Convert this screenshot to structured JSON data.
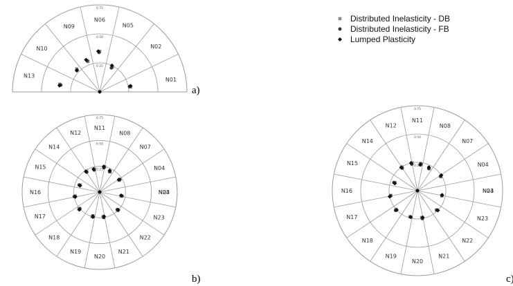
{
  "chart_data": [
    {
      "type": "scatter",
      "panel_label": "a)",
      "sectors": [
        "N01",
        "N02",
        "N05",
        "N06",
        "N09",
        "N10",
        "N13"
      ],
      "rings": [
        0.25,
        0.5,
        0.75
      ],
      "rlim": [
        0,
        0.75
      ],
      "series": [
        {
          "name": "Distributed Inelasticity  - DB",
          "marker": "square",
          "color": "#8a8a8a",
          "points": [
            {
              "angle": 9,
              "r": 0.27
            },
            {
              "angle": 63,
              "r": 0.24
            },
            {
              "angle": 90,
              "r": 0.35
            },
            {
              "angle": 111,
              "r": 0.28
            },
            {
              "angle": 135,
              "r": 0.28
            },
            {
              "angle": 169,
              "r": 0.35
            }
          ]
        },
        {
          "name": "Distributed Inelasticity - FB",
          "marker": "circle",
          "color": "#3a3a3a",
          "points": [
            {
              "angle": 10,
              "r": 0.26
            },
            {
              "angle": 64,
              "r": 0.23
            },
            {
              "angle": 91,
              "r": 0.34
            },
            {
              "angle": 112,
              "r": 0.29
            },
            {
              "angle": 136,
              "r": 0.27
            },
            {
              "angle": 170,
              "r": 0.34
            }
          ]
        },
        {
          "name": "Lumped Plasticity",
          "marker": "diamond",
          "color": "#111111",
          "points": [
            {
              "angle": 11,
              "r": 0.27
            },
            {
              "angle": 65,
              "r": 0.25
            },
            {
              "angle": 92,
              "r": 0.35
            },
            {
              "angle": 113,
              "r": 0.3
            },
            {
              "angle": 137,
              "r": 0.27
            },
            {
              "angle": 171,
              "r": 0.35
            }
          ]
        }
      ]
    },
    {
      "type": "scatter",
      "panel_label": "b)",
      "sectors": [
        "N03",
        "N04",
        "N07",
        "N08",
        "N11",
        "N12",
        "N14",
        "N15",
        "N16",
        "N17",
        "N18",
        "N19",
        "N20",
        "N21",
        "N22",
        "N23",
        "N24"
      ],
      "rings": [
        0.25,
        0.5,
        0.75
      ],
      "rlim": [
        0,
        0.75
      ],
      "series": [
        {
          "name": "Distributed Inelasticity  - DB",
          "marker": "square",
          "color": "#8a8a8a",
          "points": [
            {
              "angle": 31,
              "r": 0.22
            },
            {
              "angle": 63,
              "r": 0.22
            },
            {
              "angle": 79,
              "r": 0.25
            },
            {
              "angle": 103,
              "r": 0.23
            },
            {
              "angle": 122,
              "r": 0.24
            },
            {
              "angle": 160,
              "r": 0.2
            },
            {
              "angle": 189,
              "r": 0.24
            },
            {
              "angle": 219,
              "r": 0.26
            },
            {
              "angle": 253,
              "r": 0.25
            },
            {
              "angle": 278,
              "r": 0.24
            },
            {
              "angle": 314,
              "r": 0.25
            },
            {
              "angle": 349,
              "r": 0.21
            }
          ]
        },
        {
          "name": "Distributed Inelasticity - FB",
          "marker": "circle",
          "color": "#3a3a3a",
          "points": [
            {
              "angle": 32,
              "r": 0.23
            },
            {
              "angle": 64,
              "r": 0.22
            },
            {
              "angle": 80,
              "r": 0.24
            },
            {
              "angle": 104,
              "r": 0.22
            },
            {
              "angle": 123,
              "r": 0.23
            },
            {
              "angle": 161,
              "r": 0.21
            },
            {
              "angle": 190,
              "r": 0.25
            },
            {
              "angle": 220,
              "r": 0.25
            },
            {
              "angle": 254,
              "r": 0.24
            },
            {
              "angle": 279,
              "r": 0.25
            },
            {
              "angle": 315,
              "r": 0.24
            },
            {
              "angle": 350,
              "r": 0.22
            }
          ]
        },
        {
          "name": "Lumped Plasticity",
          "marker": "diamond",
          "color": "#111111",
          "points": [
            {
              "angle": 33,
              "r": 0.22
            },
            {
              "angle": 65,
              "r": 0.23
            },
            {
              "angle": 81,
              "r": 0.25
            },
            {
              "angle": 105,
              "r": 0.23
            },
            {
              "angle": 124,
              "r": 0.24
            },
            {
              "angle": 162,
              "r": 0.2
            },
            {
              "angle": 191,
              "r": 0.24
            },
            {
              "angle": 221,
              "r": 0.26
            },
            {
              "angle": 255,
              "r": 0.25
            },
            {
              "angle": 280,
              "r": 0.24
            },
            {
              "angle": 316,
              "r": 0.25
            },
            {
              "angle": 351,
              "r": 0.21
            }
          ]
        }
      ]
    },
    {
      "type": "scatter",
      "panel_label": "c)",
      "sectors": [
        "N03",
        "N04",
        "N07",
        "N08",
        "N11",
        "N12",
        "N14",
        "N15",
        "N16",
        "N17",
        "N18",
        "N19",
        "N20",
        "N21",
        "N22",
        "N23",
        "N24"
      ],
      "rings": [
        0.25,
        0.5,
        0.75
      ],
      "rlim": [
        0,
        0.75
      ],
      "series": [
        {
          "name": "Distributed Inelasticity  - DB",
          "marker": "square",
          "color": "#8a8a8a",
          "points": [
            {
              "angle": 31,
              "r": 0.24
            },
            {
              "angle": 62,
              "r": 0.22
            },
            {
              "angle": 82,
              "r": 0.23
            },
            {
              "angle": 101,
              "r": 0.25
            },
            {
              "angle": 123,
              "r": 0.25
            },
            {
              "angle": 160,
              "r": 0.21
            },
            {
              "angle": 190,
              "r": 0.24
            },
            {
              "angle": 221,
              "r": 0.25
            },
            {
              "angle": 254,
              "r": 0.24
            },
            {
              "angle": 279,
              "r": 0.24
            },
            {
              "angle": 314,
              "r": 0.24
            },
            {
              "angle": 348,
              "r": 0.22
            }
          ]
        },
        {
          "name": "Distributed Inelasticity - FB",
          "marker": "circle",
          "color": "#3a3a3a",
          "points": [
            {
              "angle": 32,
              "r": 0.24
            },
            {
              "angle": 63,
              "r": 0.22
            },
            {
              "angle": 83,
              "r": 0.24
            },
            {
              "angle": 102,
              "r": 0.24
            },
            {
              "angle": 124,
              "r": 0.24
            },
            {
              "angle": 161,
              "r": 0.22
            },
            {
              "angle": 191,
              "r": 0.24
            },
            {
              "angle": 222,
              "r": 0.26
            },
            {
              "angle": 255,
              "r": 0.24
            },
            {
              "angle": 280,
              "r": 0.25
            },
            {
              "angle": 315,
              "r": 0.24
            },
            {
              "angle": 349,
              "r": 0.22
            }
          ]
        },
        {
          "name": "Lumped Plasticity",
          "marker": "diamond",
          "color": "#111111",
          "points": [
            {
              "angle": 33,
              "r": 0.25
            },
            {
              "angle": 64,
              "r": 0.23
            },
            {
              "angle": 84,
              "r": 0.23
            },
            {
              "angle": 103,
              "r": 0.25
            },
            {
              "angle": 125,
              "r": 0.25
            },
            {
              "angle": 162,
              "r": 0.21
            },
            {
              "angle": 192,
              "r": 0.25
            },
            {
              "angle": 223,
              "r": 0.25
            },
            {
              "angle": 256,
              "r": 0.24
            },
            {
              "angle": 281,
              "r": 0.24
            },
            {
              "angle": 316,
              "r": 0.25
            },
            {
              "angle": 350,
              "r": 0.22
            }
          ]
        }
      ]
    }
  ],
  "legend": {
    "items": [
      {
        "label": "Distributed Inelasticity  - DB",
        "marker": "square",
        "color": "#8a8a8a"
      },
      {
        "label": "Distributed Inelasticity - FB",
        "marker": "circle",
        "color": "#3a3a3a"
      },
      {
        "label": "Lumped Plasticity",
        "marker": "diamond",
        "color": "#111111"
      }
    ]
  }
}
